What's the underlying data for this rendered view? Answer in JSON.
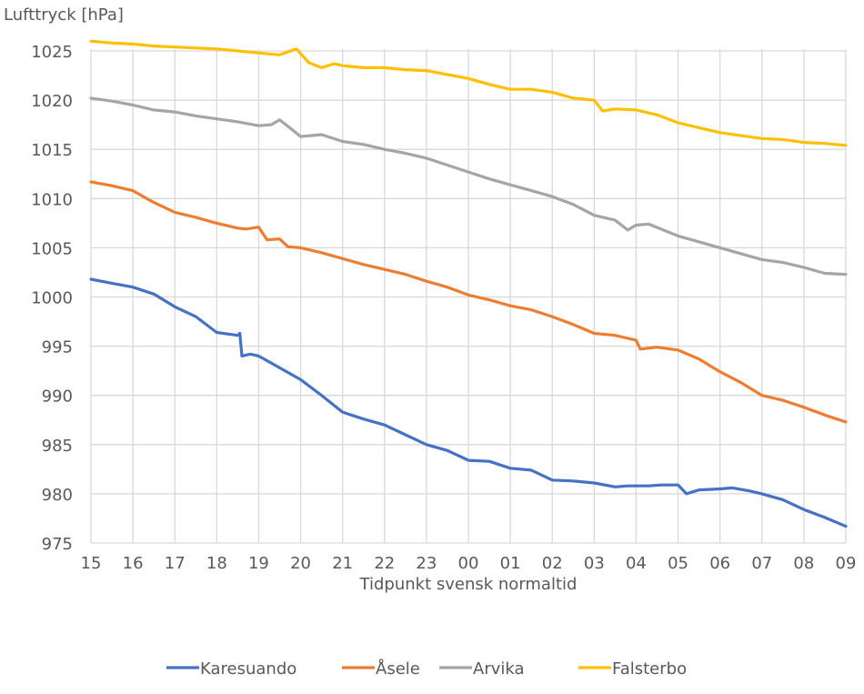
{
  "chart_data": {
    "type": "line",
    "title": "",
    "ylabel": "Lufttryck [hPa]",
    "xlabel": "Tidpunkt svensk normaltid",
    "ylim": [
      975,
      1026
    ],
    "yticks": [
      975,
      980,
      985,
      990,
      995,
      1000,
      1005,
      1010,
      1015,
      1020,
      1025
    ],
    "x_categories": [
      "15",
      "16",
      "17",
      "18",
      "19",
      "20",
      "21",
      "22",
      "23",
      "00",
      "01",
      "02",
      "03",
      "04",
      "05",
      "06",
      "07",
      "08",
      "09"
    ],
    "x_unit": "hours since first tick",
    "grid": true,
    "legend_position": "bottom",
    "series": [
      {
        "name": "Karesuando",
        "color": "#4472C4",
        "points": [
          [
            0,
            1001.8
          ],
          [
            0.5,
            1001.4
          ],
          [
            1,
            1001.0
          ],
          [
            1.5,
            1000.3
          ],
          [
            2,
            999.0
          ],
          [
            2.5,
            998.0
          ],
          [
            3,
            996.4
          ],
          [
            3.5,
            996.1
          ],
          [
            3.55,
            996.3
          ],
          [
            3.6,
            994.0
          ],
          [
            3.8,
            994.2
          ],
          [
            4,
            994.0
          ],
          [
            4.5,
            992.8
          ],
          [
            5,
            991.6
          ],
          [
            5.5,
            990.0
          ],
          [
            6,
            988.3
          ],
          [
            6.5,
            987.6
          ],
          [
            7,
            987.0
          ],
          [
            7.5,
            986.0
          ],
          [
            8,
            985.0
          ],
          [
            8.5,
            984.4
          ],
          [
            9,
            983.4
          ],
          [
            9.5,
            983.3
          ],
          [
            10,
            982.6
          ],
          [
            10.5,
            982.4
          ],
          [
            11,
            981.4
          ],
          [
            11.5,
            981.3
          ],
          [
            12,
            981.1
          ],
          [
            12.5,
            980.7
          ],
          [
            12.8,
            980.8
          ],
          [
            13.3,
            980.8
          ],
          [
            13.6,
            980.9
          ],
          [
            14,
            980.9
          ],
          [
            14.2,
            980.0
          ],
          [
            14.5,
            980.4
          ],
          [
            15,
            980.5
          ],
          [
            15.3,
            980.6
          ],
          [
            15.7,
            980.3
          ],
          [
            16,
            980.0
          ],
          [
            16.5,
            979.4
          ],
          [
            17,
            978.4
          ],
          [
            17.5,
            977.6
          ],
          [
            18,
            976.7
          ],
          [
            18.5,
            975.9
          ],
          [
            18,
            976.7
          ]
        ]
      },
      {
        "name": "Åsele",
        "color": "#ED7D31",
        "points": [
          [
            0,
            1011.7
          ],
          [
            0.5,
            1011.3
          ],
          [
            1,
            1010.8
          ],
          [
            1.5,
            1009.6
          ],
          [
            2,
            1008.6
          ],
          [
            2.5,
            1008.1
          ],
          [
            3,
            1007.5
          ],
          [
            3.5,
            1007.0
          ],
          [
            3.7,
            1006.9
          ],
          [
            4,
            1007.1
          ],
          [
            4.2,
            1005.8
          ],
          [
            4.5,
            1005.9
          ],
          [
            4.7,
            1005.1
          ],
          [
            5,
            1005.0
          ],
          [
            5.5,
            1004.5
          ],
          [
            6,
            1003.9
          ],
          [
            6.5,
            1003.3
          ],
          [
            7,
            1002.8
          ],
          [
            7.5,
            1002.3
          ],
          [
            8,
            1001.6
          ],
          [
            8.5,
            1001.0
          ],
          [
            9,
            1000.2
          ],
          [
            9.5,
            999.7
          ],
          [
            10,
            999.1
          ],
          [
            10.5,
            998.7
          ],
          [
            11,
            998.0
          ],
          [
            11.5,
            997.2
          ],
          [
            12,
            996.3
          ],
          [
            12.5,
            996.1
          ],
          [
            13,
            995.6
          ],
          [
            13.1,
            994.7
          ],
          [
            13.5,
            994.9
          ],
          [
            14,
            994.6
          ],
          [
            14.5,
            993.7
          ],
          [
            15,
            992.4
          ],
          [
            15.5,
            991.3
          ],
          [
            16,
            990.0
          ],
          [
            16.5,
            989.5
          ],
          [
            17,
            988.8
          ],
          [
            17.5,
            988.0
          ],
          [
            18,
            987.3
          ]
        ]
      },
      {
        "name": "Arvika",
        "color": "#A5A5A5",
        "points": [
          [
            0,
            1020.2
          ],
          [
            0.5,
            1019.9
          ],
          [
            1,
            1019.5
          ],
          [
            1.5,
            1019.0
          ],
          [
            2,
            1018.8
          ],
          [
            2.5,
            1018.4
          ],
          [
            3,
            1018.1
          ],
          [
            3.5,
            1017.8
          ],
          [
            4,
            1017.4
          ],
          [
            4.3,
            1017.5
          ],
          [
            4.5,
            1018.0
          ],
          [
            4.8,
            1017.0
          ],
          [
            5,
            1016.3
          ],
          [
            5.5,
            1016.5
          ],
          [
            6,
            1015.8
          ],
          [
            6.5,
            1015.5
          ],
          [
            7,
            1015.0
          ],
          [
            7.5,
            1014.6
          ],
          [
            8,
            1014.1
          ],
          [
            8.5,
            1013.4
          ],
          [
            9,
            1012.7
          ],
          [
            9.5,
            1012.0
          ],
          [
            10,
            1011.4
          ],
          [
            10.5,
            1010.8
          ],
          [
            11,
            1010.2
          ],
          [
            11.5,
            1009.4
          ],
          [
            12,
            1008.3
          ],
          [
            12.5,
            1007.8
          ],
          [
            12.8,
            1006.8
          ],
          [
            13,
            1007.3
          ],
          [
            13.3,
            1007.4
          ],
          [
            14,
            1006.2
          ],
          [
            14.5,
            1005.6
          ],
          [
            15,
            1005.0
          ],
          [
            15.5,
            1004.4
          ],
          [
            16,
            1003.8
          ],
          [
            16.5,
            1003.5
          ],
          [
            17,
            1003.0
          ],
          [
            17.5,
            1002.4
          ],
          [
            18,
            1002.3
          ]
        ]
      },
      {
        "name": "Falsterbo",
        "color": "#FFC000",
        "points": [
          [
            0,
            1026.0
          ],
          [
            0.5,
            1025.8
          ],
          [
            1,
            1025.7
          ],
          [
            1.5,
            1025.5
          ],
          [
            2,
            1025.4
          ],
          [
            2.5,
            1025.3
          ],
          [
            3,
            1025.2
          ],
          [
            3.5,
            1025.0
          ],
          [
            4,
            1024.8
          ],
          [
            4.5,
            1024.6
          ],
          [
            4.9,
            1025.2
          ],
          [
            5.2,
            1023.8
          ],
          [
            5.5,
            1023.3
          ],
          [
            5.8,
            1023.7
          ],
          [
            6,
            1023.5
          ],
          [
            6.5,
            1023.3
          ],
          [
            7,
            1023.3
          ],
          [
            7.5,
            1023.1
          ],
          [
            8,
            1023.0
          ],
          [
            8.5,
            1022.6
          ],
          [
            9,
            1022.2
          ],
          [
            9.5,
            1021.6
          ],
          [
            10,
            1021.1
          ],
          [
            10.5,
            1021.1
          ],
          [
            11,
            1020.8
          ],
          [
            11.5,
            1020.2
          ],
          [
            12,
            1020.0
          ],
          [
            12.2,
            1018.9
          ],
          [
            12.5,
            1019.1
          ],
          [
            13,
            1019.0
          ],
          [
            13.5,
            1018.5
          ],
          [
            14,
            1017.7
          ],
          [
            14.5,
            1017.2
          ],
          [
            15,
            1016.7
          ],
          [
            15.5,
            1016.4
          ],
          [
            16,
            1016.1
          ],
          [
            16.5,
            1016.0
          ],
          [
            17,
            1015.7
          ],
          [
            17.5,
            1015.6
          ],
          [
            18,
            1015.4
          ]
        ]
      }
    ]
  }
}
